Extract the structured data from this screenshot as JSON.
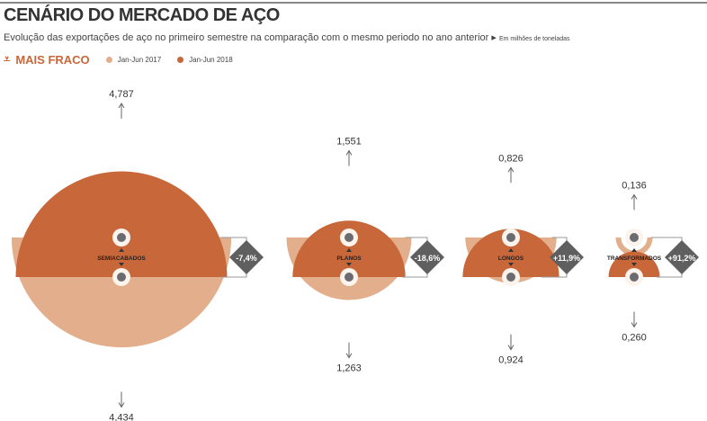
{
  "title": "CENÁRIO DO MERCADO DE AÇO",
  "subtitle": "Evolução das exportações de aço no primeiro semestre na comparação com o mesmo periodo no ano anterior",
  "unit_note": "Em milhões de toneladas",
  "tag": "MAIS FRACO",
  "colors": {
    "y2017": "#e2ae8c",
    "y2018": "#c8673a",
    "diamond": "#5f5f5f",
    "dot": "#6b6b70"
  },
  "chart_data": {
    "type": "semicircle-area",
    "title": "CENÁRIO DO MERCADO DE AÇO",
    "unit": "Em milhões de toneladas",
    "series": [
      {
        "name": "Jan-Jun 2017",
        "values": [
          4.787,
          1.551,
          0.826,
          0.136
        ],
        "labels": [
          "4,787",
          "1,551",
          "0,826",
          "0,136"
        ]
      },
      {
        "name": "Jan-Jun 2018",
        "values": [
          4.434,
          1.263,
          0.924,
          0.26
        ],
        "labels": [
          "4,434",
          "1,263",
          "0,924",
          "0,260"
        ]
      }
    ],
    "categories": [
      "SEMIACABADOS",
      "PLANOS",
      "LONGOS",
      "TRANSFORMADOS"
    ],
    "changes": [
      "-7,4%",
      "-18,6%",
      "+11,9%",
      "+91,2%"
    ]
  }
}
